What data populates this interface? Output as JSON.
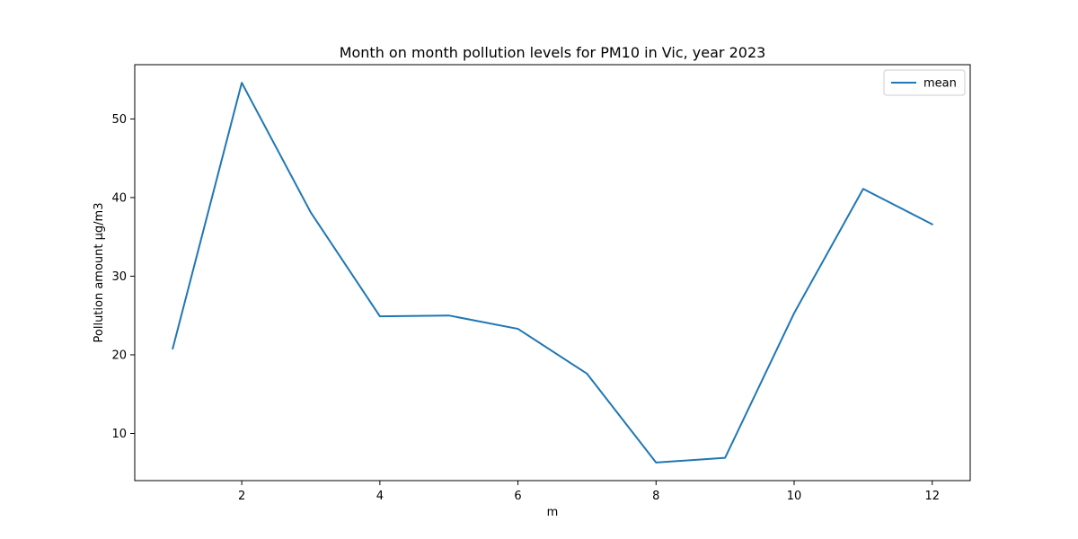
{
  "chart_data": {
    "type": "line",
    "title": "Month on month pollution levels for PM10 in Vic, year 2023",
    "xlabel": "m",
    "ylabel": "Pollution amount µg/m3",
    "xlim": [
      0.45,
      12.55
    ],
    "ylim": [
      4.0,
      56.9
    ],
    "xticks": [
      2,
      4,
      6,
      8,
      10,
      12
    ],
    "yticks": [
      10,
      20,
      30,
      40,
      50
    ],
    "grid": false,
    "legend_position": "top-right",
    "series": [
      {
        "name": "mean",
        "color": "#1f77b4",
        "x": [
          1,
          2,
          3,
          4,
          5,
          6,
          7,
          8,
          9,
          10,
          11,
          12
        ],
        "y": [
          20.8,
          54.6,
          38.1,
          24.9,
          25.0,
          23.3,
          17.6,
          6.3,
          6.9,
          25.3,
          41.1,
          36.6
        ]
      }
    ]
  }
}
